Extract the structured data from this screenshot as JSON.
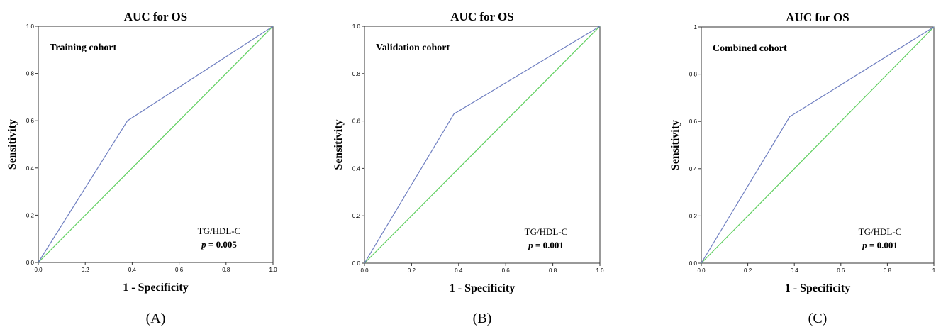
{
  "chart_data": [
    {
      "type": "line",
      "panel_label": "(A)",
      "title": "AUC for OS",
      "cohort_label": "Training cohort",
      "xlabel": "1 - Specificity",
      "ylabel": "Sensitivity",
      "xlim": [
        0,
        1
      ],
      "ylim": [
        0,
        1
      ],
      "ticks": [
        "0.0",
        "0.2",
        "0.4",
        "0.6",
        "0.8",
        "1.0"
      ],
      "legend_entry": "TG/HDL-C",
      "p_symbol": "p",
      "p_text": " = 0.005",
      "colors": {
        "roc": "#6f7fc1",
        "reference": "#5fcf5f"
      },
      "series": [
        {
          "x": [
            0,
            0.38,
            1
          ],
          "y": [
            0,
            0.6,
            1
          ]
        },
        {
          "x": [
            0,
            1
          ],
          "y": [
            0,
            1
          ]
        }
      ]
    },
    {
      "type": "line",
      "panel_label": "(B)",
      "title": "AUC for OS",
      "cohort_label": "Validation cohort",
      "xlabel": "1 - Specificity",
      "ylabel": "Sensitivity",
      "xlim": [
        0,
        1
      ],
      "ylim": [
        0,
        1
      ],
      "ticks": [
        "0.0",
        "0.2",
        "0.4",
        "0.6",
        "0.8",
        "1.0"
      ],
      "legend_entry": "TG/HDL-C",
      "p_symbol": "p",
      "p_text": " = 0.001",
      "colors": {
        "roc": "#6f7fc1",
        "reference": "#5fcf5f"
      },
      "series": [
        {
          "x": [
            0,
            0.38,
            1
          ],
          "y": [
            0,
            0.63,
            1
          ]
        },
        {
          "x": [
            0,
            1
          ],
          "y": [
            0,
            1
          ]
        }
      ]
    },
    {
      "type": "line",
      "panel_label": "(C)",
      "title": "AUC for OS",
      "cohort_label": "Combined cohort",
      "xlabel": "1 - Specificity",
      "ylabel": "Sensitivity",
      "xlim": [
        0,
        1
      ],
      "ylim": [
        0,
        1
      ],
      "ticks": [
        "0.0",
        "0.2",
        "0.4",
        "0.6",
        "0.8",
        "1"
      ],
      "legend_entry": "TG/HDL-C",
      "p_symbol": "p",
      "p_text": " = 0.001",
      "colors": {
        "roc": "#6f7fc1",
        "reference": "#5fcf5f"
      },
      "series": [
        {
          "x": [
            0,
            0.38,
            1
          ],
          "y": [
            0,
            0.62,
            1
          ]
        },
        {
          "x": [
            0,
            1
          ],
          "y": [
            0,
            1
          ]
        }
      ]
    }
  ]
}
